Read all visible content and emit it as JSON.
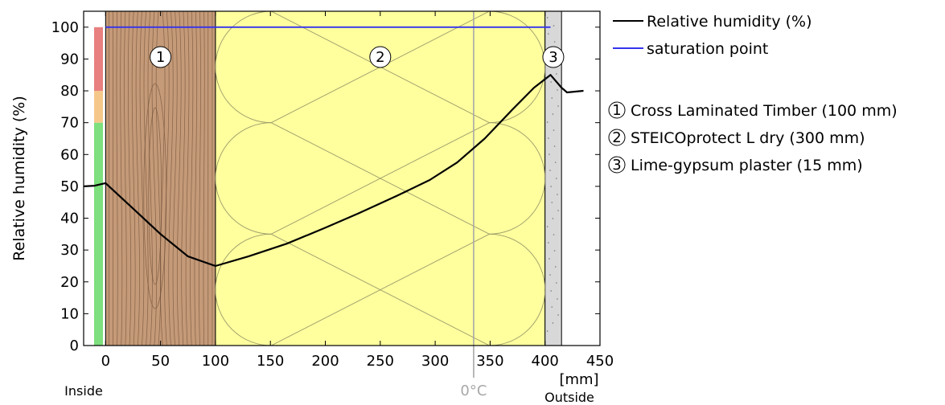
{
  "chart_data": {
    "type": "line",
    "ylabel": "Relative humidity (%)",
    "xunit": "[mm]",
    "inside_label": "Inside",
    "outside_label": "Outside",
    "xlim": [
      -20,
      450
    ],
    "ylim": [
      0,
      105
    ],
    "x_ticks": [
      0,
      50,
      100,
      150,
      200,
      250,
      300,
      350,
      400,
      450
    ],
    "y_ticks": [
      0,
      10,
      20,
      30,
      40,
      50,
      60,
      70,
      80,
      90,
      100
    ],
    "grid": false,
    "legend_position": "top-right outside",
    "series": [
      {
        "name": "Relative humidity (%)",
        "color": "#000000",
        "x": [
          -20,
          -10,
          0,
          25,
          50,
          75,
          100,
          130,
          165,
          200,
          230,
          265,
          295,
          320,
          345,
          370,
          390,
          405,
          415,
          420,
          435
        ],
        "y": [
          50,
          50.2,
          51,
          43,
          35,
          28,
          25,
          28,
          32,
          37,
          41.5,
          47,
          52,
          57.5,
          65,
          74,
          81,
          85,
          81,
          79.5,
          80
        ]
      },
      {
        "name": "saturation point",
        "color": "#3333ee",
        "x": [
          0,
          405
        ],
        "y": [
          100,
          100
        ]
      }
    ],
    "layers": [
      {
        "number": "1",
        "label": "Cross Laminated Timber (100 mm)",
        "x_start": 0,
        "x_end": 100,
        "color": "#c49a78"
      },
      {
        "number": "2",
        "label": "STEICOprotect L dry (300 mm)",
        "x_start": 100,
        "x_end": 400,
        "color": "#ffff9e"
      },
      {
        "number": "3",
        "label": "Lime-gypsum plaster (15 mm)",
        "x_start": 400,
        "x_end": 415,
        "color": "#d8d8d8"
      }
    ],
    "risk_bands": [
      {
        "from": 0,
        "to": 70,
        "color": "#7ddf7d"
      },
      {
        "from": 70,
        "to": 80,
        "color": "#f5c88a"
      },
      {
        "from": 80,
        "to": 100,
        "color": "#e88080"
      }
    ],
    "zero_celsius": {
      "x": 335,
      "label": "0°C",
      "color": "#a8a8a8"
    }
  }
}
